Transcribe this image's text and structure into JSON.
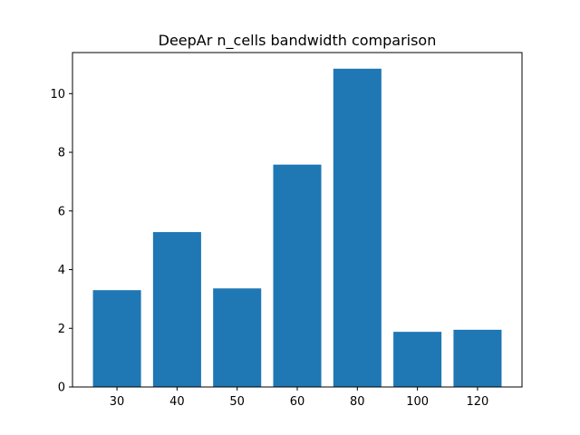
{
  "chart_data": {
    "type": "bar",
    "title": "DeepAr n_cells bandwidth comparison",
    "xlabel": "",
    "ylabel": "",
    "categories": [
      "30",
      "40",
      "50",
      "60",
      "80",
      "100",
      "120"
    ],
    "values": [
      3.3,
      5.28,
      3.36,
      7.58,
      10.85,
      1.88,
      1.95
    ],
    "ylim": [
      0,
      11.4
    ],
    "yticks": [
      0,
      2,
      4,
      6,
      8,
      10
    ],
    "bar_color": "#1f77b4",
    "grid": false,
    "legend": "none"
  }
}
